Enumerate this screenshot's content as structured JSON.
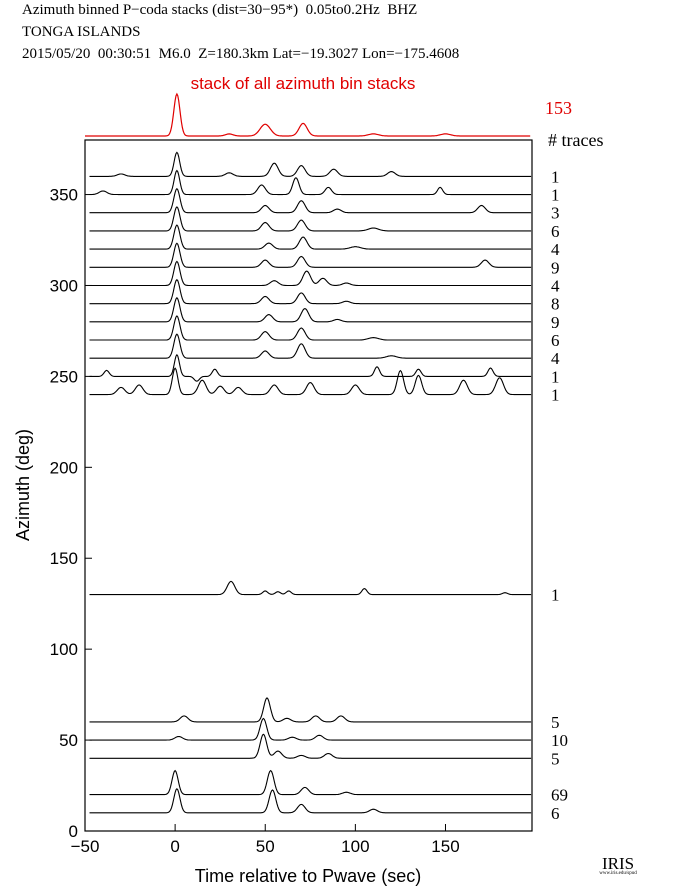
{
  "header": {
    "line1": "Azimuth binned P−coda stacks (dist=30−95*)  0.05to0.2Hz  BHZ",
    "line2": "TONGA ISLANDS",
    "line3": "2015/05/20  00:30:51  M6.0  Z=180.3km Lat=−19.3027 Lon=−175.4608"
  },
  "logo": {
    "text": "IRIS",
    "url_text": "www.iris.edu/spud"
  },
  "chart_data": {
    "type": "line",
    "title": "stack of all azimuth bin stacks",
    "total_traces": "153",
    "traces_label": "# traces",
    "xlabel": "Time relative to Pwave (sec)",
    "ylabel": "Azimuth (deg)",
    "xlim": [
      -50,
      198
    ],
    "ylim": [
      0,
      380
    ],
    "xticks": [
      -50,
      0,
      50,
      100,
      150
    ],
    "xtick_labels": [
      "−50",
      "0",
      "50",
      "100",
      "150"
    ],
    "yticks": [
      0,
      50,
      100,
      150,
      200,
      250,
      300,
      350
    ],
    "ytick_labels": [
      "0",
      "50",
      "100",
      "150",
      "200",
      "250",
      "300",
      "350"
    ],
    "grid": false,
    "top_stack": {
      "color": "#e00000",
      "peaks": [
        {
          "t": 1,
          "a": 1.0,
          "w": 2.4
        },
        {
          "t": 50,
          "a": 0.28,
          "w": 4
        },
        {
          "t": 71,
          "a": 0.3,
          "w": 3.2
        },
        {
          "t": 30,
          "a": 0.05,
          "w": 3
        },
        {
          "t": 110,
          "a": 0.05,
          "w": 4
        },
        {
          "t": 150,
          "a": 0.05,
          "w": 4
        }
      ]
    },
    "series": [
      {
        "azimuth": 360,
        "count": "1",
        "peaks": [
          {
            "t": 1,
            "a": 1.0,
            "w": 2.2
          },
          {
            "t": 55,
            "a": 0.55,
            "w": 3
          },
          {
            "t": 70,
            "a": 0.45,
            "w": 3
          },
          {
            "t": 88,
            "a": 0.3,
            "w": 3
          },
          {
            "t": 30,
            "a": 0.15,
            "w": 3
          },
          {
            "t": 120,
            "a": 0.2,
            "w": 3
          },
          {
            "t": -30,
            "a": 0.1,
            "w": 3
          }
        ]
      },
      {
        "azimuth": 350,
        "count": "1",
        "peaks": [
          {
            "t": 1,
            "a": 1.0,
            "w": 2.2
          },
          {
            "t": 67,
            "a": 0.7,
            "w": 2.5
          },
          {
            "t": 48,
            "a": 0.4,
            "w": 3
          },
          {
            "t": 85,
            "a": 0.3,
            "w": 2.5
          },
          {
            "t": 147,
            "a": 0.3,
            "w": 2
          },
          {
            "t": -40,
            "a": 0.15,
            "w": 3
          }
        ]
      },
      {
        "azimuth": 340,
        "count": "3",
        "peaks": [
          {
            "t": 1,
            "a": 1.0,
            "w": 2.4
          },
          {
            "t": 70,
            "a": 0.5,
            "w": 3
          },
          {
            "t": 50,
            "a": 0.3,
            "w": 3
          },
          {
            "t": 90,
            "a": 0.15,
            "w": 3
          },
          {
            "t": 170,
            "a": 0.3,
            "w": 3
          }
        ]
      },
      {
        "azimuth": 330,
        "count": "6",
        "peaks": [
          {
            "t": 1,
            "a": 1.0,
            "w": 2.4
          },
          {
            "t": 70,
            "a": 0.45,
            "w": 3
          },
          {
            "t": 50,
            "a": 0.35,
            "w": 3
          },
          {
            "t": 110,
            "a": 0.12,
            "w": 4
          }
        ]
      },
      {
        "azimuth": 320,
        "count": "4",
        "peaks": [
          {
            "t": 1,
            "a": 1.0,
            "w": 2.4
          },
          {
            "t": 71,
            "a": 0.5,
            "w": 3
          },
          {
            "t": 52,
            "a": 0.25,
            "w": 3
          },
          {
            "t": 100,
            "a": 0.1,
            "w": 4
          }
        ]
      },
      {
        "azimuth": 310,
        "count": "9",
        "peaks": [
          {
            "t": 1,
            "a": 1.0,
            "w": 2.4
          },
          {
            "t": 70,
            "a": 0.45,
            "w": 3
          },
          {
            "t": 50,
            "a": 0.3,
            "w": 3
          },
          {
            "t": 172,
            "a": 0.3,
            "w": 3
          }
        ]
      },
      {
        "azimuth": 300,
        "count": "4",
        "peaks": [
          {
            "t": 1,
            "a": 1.0,
            "w": 2.4
          },
          {
            "t": 73,
            "a": 0.6,
            "w": 3
          },
          {
            "t": 82,
            "a": 0.3,
            "w": 3
          },
          {
            "t": 55,
            "a": 0.2,
            "w": 3
          },
          {
            "t": 95,
            "a": 0.1,
            "w": 3
          }
        ]
      },
      {
        "azimuth": 290,
        "count": "8",
        "peaks": [
          {
            "t": 1,
            "a": 1.0,
            "w": 2.4
          },
          {
            "t": 70,
            "a": 0.45,
            "w": 3
          },
          {
            "t": 50,
            "a": 0.3,
            "w": 3
          },
          {
            "t": 95,
            "a": 0.1,
            "w": 3
          }
        ]
      },
      {
        "azimuth": 280,
        "count": "9",
        "peaks": [
          {
            "t": 1,
            "a": 1.0,
            "w": 2.4
          },
          {
            "t": 72,
            "a": 0.55,
            "w": 3
          },
          {
            "t": 52,
            "a": 0.3,
            "w": 3
          },
          {
            "t": 90,
            "a": 0.1,
            "w": 3
          }
        ]
      },
      {
        "azimuth": 270,
        "count": "6",
        "peaks": [
          {
            "t": 1,
            "a": 1.0,
            "w": 2.4
          },
          {
            "t": 70,
            "a": 0.5,
            "w": 3
          },
          {
            "t": 50,
            "a": 0.35,
            "w": 3
          },
          {
            "t": 110,
            "a": 0.1,
            "w": 4
          }
        ]
      },
      {
        "azimuth": 260,
        "count": "4",
        "peaks": [
          {
            "t": 1,
            "a": 1.0,
            "w": 2.4
          },
          {
            "t": 70,
            "a": 0.6,
            "w": 3
          },
          {
            "t": 50,
            "a": 0.3,
            "w": 3
          },
          {
            "t": 120,
            "a": 0.1,
            "w": 4
          }
        ]
      },
      {
        "azimuth": 250,
        "count": "1",
        "peaks": [
          {
            "t": 1,
            "a": 0.9,
            "w": 2
          },
          {
            "t": 22,
            "a": 0.3,
            "w": 2
          },
          {
            "t": -38,
            "a": 0.25,
            "w": 2
          },
          {
            "t": 112,
            "a": 0.4,
            "w": 2
          },
          {
            "t": 135,
            "a": 0.3,
            "w": 2
          },
          {
            "t": 175,
            "a": 0.35,
            "w": 2
          },
          {
            "t": 12,
            "a": -0.2,
            "w": 2
          }
        ]
      },
      {
        "azimuth": 240,
        "count": "1",
        "peaks": [
          {
            "t": 0,
            "a": 1.1,
            "w": 2.2
          },
          {
            "t": 15,
            "a": 0.6,
            "w": 3
          },
          {
            "t": 25,
            "a": 0.35,
            "w": 3
          },
          {
            "t": 35,
            "a": 0.3,
            "w": 3
          },
          {
            "t": 55,
            "a": 0.4,
            "w": 3
          },
          {
            "t": 75,
            "a": 0.5,
            "w": 3
          },
          {
            "t": 100,
            "a": 0.4,
            "w": 3
          },
          {
            "t": 125,
            "a": 1.0,
            "w": 2.5
          },
          {
            "t": 135,
            "a": 0.8,
            "w": 2.5
          },
          {
            "t": 160,
            "a": 0.6,
            "w": 3
          },
          {
            "t": 180,
            "a": 0.7,
            "w": 3
          },
          {
            "t": -30,
            "a": 0.3,
            "w": 3
          },
          {
            "t": -20,
            "a": 0.4,
            "w": 3
          }
        ]
      },
      {
        "azimuth": 130,
        "count": "1",
        "peaks": [
          {
            "t": 31,
            "a": 0.55,
            "w": 3
          },
          {
            "t": 50,
            "a": 0.15,
            "w": 2
          },
          {
            "t": 57,
            "a": 0.12,
            "w": 2
          },
          {
            "t": 63,
            "a": 0.15,
            "w": 2
          },
          {
            "t": 105,
            "a": 0.25,
            "w": 2
          },
          {
            "t": 183,
            "a": 0.08,
            "w": 2
          }
        ]
      },
      {
        "azimuth": 60,
        "count": "5",
        "peaks": [
          {
            "t": 51,
            "a": 1.0,
            "w": 2.6
          },
          {
            "t": 5,
            "a": 0.25,
            "w": 3
          },
          {
            "t": 78,
            "a": 0.25,
            "w": 3
          },
          {
            "t": 92,
            "a": 0.25,
            "w": 3
          },
          {
            "t": 62,
            "a": 0.15,
            "w": 3
          }
        ]
      },
      {
        "azimuth": 50,
        "count": "10",
        "peaks": [
          {
            "t": 49,
            "a": 0.9,
            "w": 2.6
          },
          {
            "t": 80,
            "a": 0.2,
            "w": 3
          },
          {
            "t": 2,
            "a": 0.15,
            "w": 3
          },
          {
            "t": 65,
            "a": 0.12,
            "w": 3
          }
        ]
      },
      {
        "azimuth": 40,
        "count": "5",
        "peaks": [
          {
            "t": 49,
            "a": 1.0,
            "w": 2.6
          },
          {
            "t": 57,
            "a": 0.3,
            "w": 3
          },
          {
            "t": 85,
            "a": 0.2,
            "w": 3
          },
          {
            "t": 70,
            "a": 0.12,
            "w": 3
          }
        ]
      },
      {
        "azimuth": 20,
        "count": "69",
        "peaks": [
          {
            "t": 0,
            "a": 1.0,
            "w": 2.4
          },
          {
            "t": 53,
            "a": 1.0,
            "w": 2.6
          },
          {
            "t": 72,
            "a": 0.3,
            "w": 3
          },
          {
            "t": 95,
            "a": 0.1,
            "w": 3
          }
        ]
      },
      {
        "azimuth": 10,
        "count": "6",
        "peaks": [
          {
            "t": 1,
            "a": 1.0,
            "w": 2.4
          },
          {
            "t": 54,
            "a": 0.95,
            "w": 2.6
          },
          {
            "t": 70,
            "a": 0.35,
            "w": 3
          },
          {
            "t": 110,
            "a": 0.15,
            "w": 3
          }
        ]
      }
    ]
  }
}
